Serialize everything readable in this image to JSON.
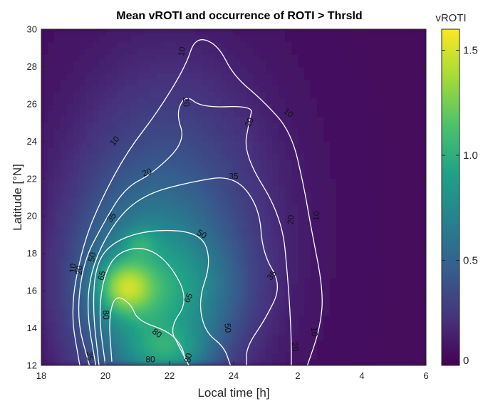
{
  "chart_data": {
    "type": "heatmap",
    "title": "Mean vROTI and occurrence of ROTI > Thrsld",
    "xlabel": "Local time [h]",
    "ylabel": "Latitude [°N]",
    "x_ticks": [
      "18",
      "20",
      "22",
      "24",
      "2",
      "4",
      "6"
    ],
    "x_tick_values": [
      18,
      20,
      22,
      24,
      26,
      28,
      30
    ],
    "xlim": [
      18,
      30
    ],
    "y_ticks": [
      "12",
      "14",
      "16",
      "18",
      "20",
      "22",
      "24",
      "26",
      "28",
      "30"
    ],
    "y_tick_values": [
      12,
      14,
      16,
      18,
      20,
      22,
      24,
      26,
      28,
      30
    ],
    "ylim": [
      12,
      30
    ],
    "colorbar": {
      "label": "vROTI",
      "ticks": [
        "0",
        "0.5",
        "1.0",
        "1.5"
      ],
      "tick_values": [
        0,
        0.5,
        1.0,
        1.5
      ],
      "range": [
        0,
        1.6
      ],
      "colormap": [
        "#440154",
        "#46327e",
        "#365c8d",
        "#277f8e",
        "#1fa187",
        "#4ac16d",
        "#a0da39",
        "#fde725"
      ]
    },
    "heat_blobs": [
      {
        "lt": 22.0,
        "lat": 19.5,
        "slt": 2.4,
        "slat": 6.5,
        "v": 0.38
      },
      {
        "lt": 21.2,
        "lat": 15.5,
        "slt": 1.5,
        "slat": 3.6,
        "v": 0.55
      },
      {
        "lt": 20.6,
        "lat": 16.2,
        "slt": 0.6,
        "slat": 1.0,
        "v": 0.65
      },
      {
        "lt": 21.1,
        "lat": 18.6,
        "slt": 0.35,
        "slat": 0.5,
        "v": 0.22
      },
      {
        "lt": 22.0,
        "lat": 12.8,
        "slt": 0.9,
        "slat": 0.9,
        "v": 0.35
      },
      {
        "lt": 22.9,
        "lat": 16.0,
        "slt": 1.2,
        "slat": 2.0,
        "v": 0.18
      }
    ],
    "contours": [
      {
        "level": "10",
        "points": [
          [
            19.2,
            12
          ],
          [
            18.9,
            15
          ],
          [
            19.3,
            18.5
          ],
          [
            19.9,
            21
          ],
          [
            20.7,
            23.5
          ],
          [
            21.6,
            25.5
          ],
          [
            22.5,
            28
          ],
          [
            22.8,
            29.6
          ],
          [
            23.5,
            29.2
          ],
          [
            24.0,
            27.5
          ],
          [
            24.9,
            26.2
          ],
          [
            25.8,
            24.5
          ],
          [
            26.2,
            21.5
          ],
          [
            26.4,
            19.5
          ],
          [
            26.8,
            16
          ],
          [
            26.7,
            14
          ],
          [
            26.3,
            12
          ]
        ]
      },
      {
        "level": "20",
        "points": [
          [
            19.5,
            12
          ],
          [
            19.1,
            14.5
          ],
          [
            19.3,
            17.5
          ],
          [
            19.9,
            19.5
          ],
          [
            20.6,
            21.5
          ],
          [
            21.5,
            22.3
          ],
          [
            22.5,
            24.0
          ],
          [
            22.2,
            25.5
          ],
          [
            22.5,
            26.5
          ],
          [
            23.0,
            25.8
          ],
          [
            24.6,
            25.9
          ],
          [
            24.5,
            25.2
          ],
          [
            24.3,
            23.3
          ],
          [
            25.5,
            20.0
          ],
          [
            25.7,
            16.5
          ],
          [
            25.8,
            13.5
          ],
          [
            25.8,
            12
          ]
        ]
      },
      {
        "level": "35",
        "points": [
          [
            19.7,
            12
          ],
          [
            19.4,
            15
          ],
          [
            19.6,
            17.5
          ],
          [
            20.4,
            20.0
          ],
          [
            21.3,
            21.2
          ],
          [
            22.6,
            21.8
          ],
          [
            24.0,
            22.2
          ],
          [
            24.8,
            20.5
          ],
          [
            24.9,
            18.0
          ],
          [
            25.5,
            16.3
          ],
          [
            25.0,
            14.5
          ],
          [
            24.4,
            13.0
          ],
          [
            24.4,
            12
          ]
        ]
      },
      {
        "level": "50",
        "points": [
          [
            19.8,
            12
          ],
          [
            19.6,
            15
          ],
          [
            19.7,
            17.5
          ],
          [
            20.3,
            18.7
          ],
          [
            21.5,
            19.3
          ],
          [
            23.0,
            19.1
          ],
          [
            23.3,
            17.5
          ],
          [
            22.9,
            15.5
          ],
          [
            23.1,
            13.8
          ],
          [
            23.7,
            13.0
          ],
          [
            23.9,
            12
          ]
        ]
      },
      {
        "level": "65",
        "points": [
          [
            20.0,
            12
          ],
          [
            19.8,
            14.5
          ],
          [
            19.9,
            16.5
          ],
          [
            20.3,
            18.0
          ],
          [
            21.2,
            18.4
          ],
          [
            22.0,
            17.5
          ],
          [
            22.6,
            15.5
          ],
          [
            22.0,
            14.0
          ],
          [
            22.3,
            13.0
          ],
          [
            22.6,
            12
          ]
        ]
      },
      {
        "level": "80",
        "points": [
          [
            20.2,
            12.2
          ],
          [
            20.1,
            14.5
          ],
          [
            20.3,
            15.8
          ],
          [
            20.8,
            15.3
          ],
          [
            21.0,
            14.4
          ],
          [
            22.0,
            13.8
          ],
          [
            22.4,
            13.0
          ],
          [
            22.5,
            12.2
          ]
        ]
      }
    ],
    "contour_labels": [
      {
        "text": "10",
        "lt": 22.4,
        "lat": 28.8,
        "rot": -80
      },
      {
        "text": "10",
        "lt": 25.7,
        "lat": 25.5,
        "rot": 40
      },
      {
        "text": "10",
        "lt": 20.3,
        "lat": 24.0,
        "rot": -50
      },
      {
        "text": "10",
        "lt": 26.6,
        "lat": 20.0,
        "rot": -88
      },
      {
        "text": "10",
        "lt": 26.5,
        "lat": 13.8,
        "rot": 85
      },
      {
        "text": "10",
        "lt": 19.0,
        "lat": 17.2,
        "rot": -85
      },
      {
        "text": "20",
        "lt": 22.5,
        "lat": 26.1,
        "rot": 85
      },
      {
        "text": "20",
        "lt": 24.5,
        "lat": 25.0,
        "rot": -65
      },
      {
        "text": "20",
        "lt": 21.3,
        "lat": 22.3,
        "rot": -20
      },
      {
        "text": "20",
        "lt": 25.8,
        "lat": 19.8,
        "rot": -85
      },
      {
        "text": "20",
        "lt": 25.9,
        "lat": 13.0,
        "rot": 80
      },
      {
        "text": "20",
        "lt": 19.2,
        "lat": 17.1,
        "rot": -85
      },
      {
        "text": "35",
        "lt": 24.0,
        "lat": 22.1,
        "rot": 0
      },
      {
        "text": "35",
        "lt": 20.2,
        "lat": 19.9,
        "rot": -50
      },
      {
        "text": "35",
        "lt": 25.2,
        "lat": 16.8,
        "rot": -50
      },
      {
        "text": "35",
        "lt": 19.5,
        "lat": 12.5,
        "rot": 85
      },
      {
        "text": "50",
        "lt": 23.0,
        "lat": 19.0,
        "rot": 30
      },
      {
        "text": "50",
        "lt": 19.6,
        "lat": 17.8,
        "rot": -80
      },
      {
        "text": "50",
        "lt": 23.8,
        "lat": 14.0,
        "rot": 85
      },
      {
        "text": "65",
        "lt": 19.9,
        "lat": 16.8,
        "rot": -75
      },
      {
        "text": "65",
        "lt": 22.6,
        "lat": 15.6,
        "rot": -65
      },
      {
        "text": "80",
        "lt": 20.0,
        "lat": 14.7,
        "rot": 88
      },
      {
        "text": "80",
        "lt": 21.6,
        "lat": 13.7,
        "rot": 35
      },
      {
        "text": "80",
        "lt": 21.4,
        "lat": 12.3,
        "rot": 0
      },
      {
        "text": "80",
        "lt": 22.6,
        "lat": 12.4,
        "rot": -80
      }
    ]
  }
}
